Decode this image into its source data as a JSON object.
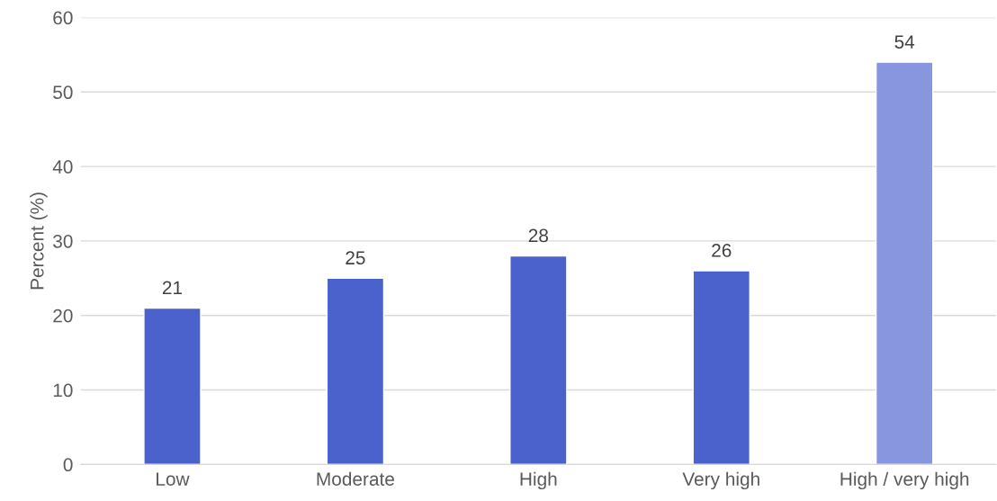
{
  "chart_data": {
    "type": "bar",
    "ylabel": "Percent (%)",
    "categories": [
      "Low",
      "Moderate",
      "High",
      "Very high",
      "High / very high"
    ],
    "values": [
      21,
      25,
      28,
      26,
      54
    ],
    "colors": [
      "#4b61cc",
      "#4b61cc",
      "#4b61cc",
      "#4b61cc",
      "#8896e0"
    ],
    "ylim": [
      0,
      60
    ],
    "yticks": [
      0,
      10,
      20,
      30,
      40,
      50,
      60
    ],
    "grid": "y",
    "data_labels": true,
    "legend": false
  }
}
